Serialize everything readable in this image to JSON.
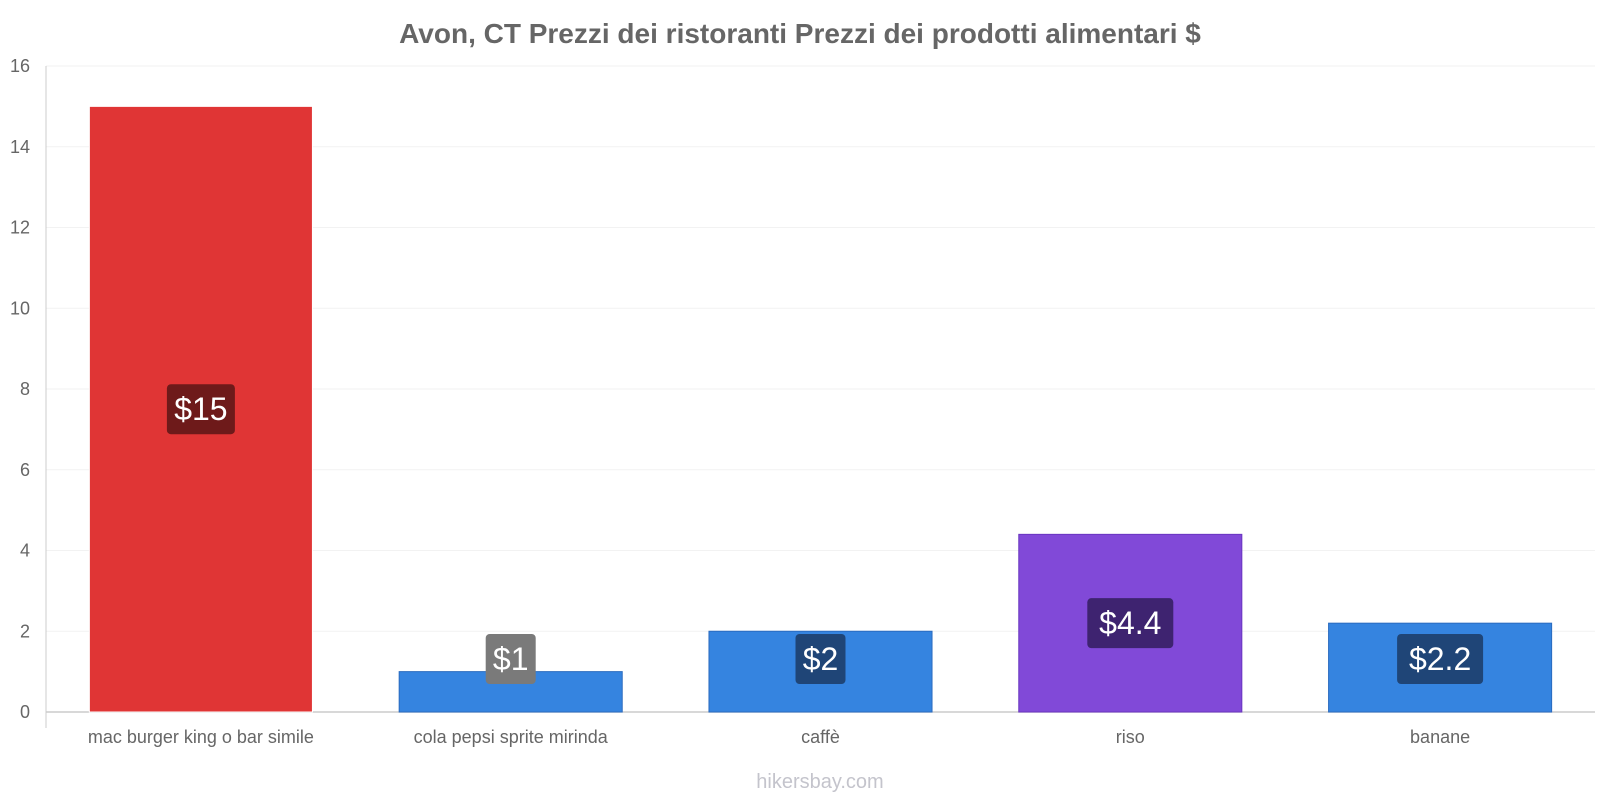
{
  "chart_data": {
    "type": "bar",
    "title": "Avon, CT Prezzi dei ristoranti Prezzi dei prodotti alimentari $",
    "categories": [
      "mac burger king o bar simile",
      "cola pepsi sprite mirinda",
      "caffè",
      "riso",
      "banane"
    ],
    "values": [
      15,
      1,
      2,
      4.4,
      2.2
    ],
    "value_labels": [
      "$15",
      "$1",
      "$2",
      "$4.4",
      "$2.2"
    ],
    "bar_colors": [
      "#e03535",
      "#3584e0",
      "#3584e0",
      "#8149d8",
      "#3584e0"
    ],
    "bar_border_colors": [
      "#ffffff",
      "#2a6bbf",
      "#2a6bbf",
      "#6a35c0",
      "#2a6bbf"
    ],
    "label_bg_colors": [
      "#6e1a1a",
      "#7a7a7a",
      "#1f4577",
      "#3e2370",
      "#1f4577"
    ],
    "label_top_bg_colors": [
      null,
      null,
      "#7a7a7a",
      null,
      "#7a7a7a"
    ],
    "xlabel": "",
    "ylabel": "",
    "ylim": [
      0,
      16
    ],
    "yticks": [
      0,
      2,
      4,
      6,
      8,
      10,
      12,
      14,
      16
    ],
    "grid": true,
    "legend": "none"
  },
  "footer": {
    "source": "hikersbay.com"
  },
  "colors": {
    "axis": "#cccccc",
    "grid": "#f2f2f2",
    "text": "#666666"
  }
}
